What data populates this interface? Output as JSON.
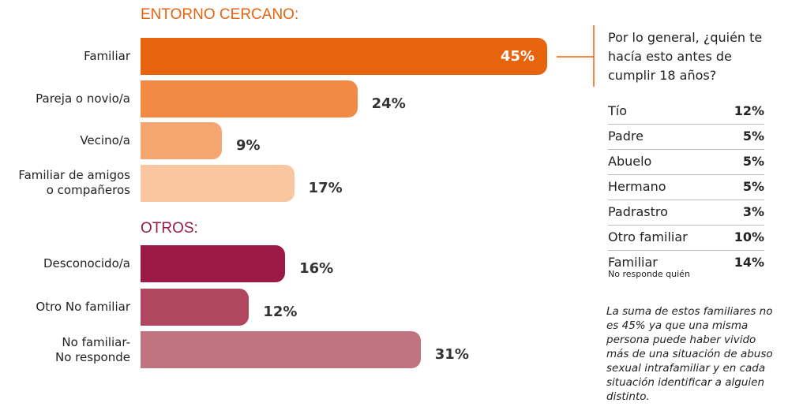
{
  "chart_data": {
    "type": "bar",
    "orientation": "horizontal",
    "groups": [
      {
        "title": "ENTORNO CERCANO:",
        "title_color": "#e8630e",
        "categories": [
          "Familiar",
          "Pareja o novio/a",
          "Vecino/a",
          "Familiar de amigos\no compañeros"
        ],
        "values": [
          45,
          24,
          9,
          17
        ],
        "value_labels": [
          "45%",
          "24%",
          "9%",
          "17%"
        ],
        "colors": [
          "#e8630e",
          "#f08a45",
          "#f5a670",
          "#f9c6a0"
        ]
      },
      {
        "title": "OTROS:",
        "title_color": "#9b1a45",
        "categories": [
          "Desconocido/a",
          "Otro No familiar",
          "No familiar-\nNo responde"
        ],
        "values": [
          16,
          12,
          31
        ],
        "value_labels": [
          "16%",
          "12%",
          "31%"
        ],
        "colors": [
          "#9b1a45",
          "#b0475f",
          "#c07480"
        ]
      }
    ]
  },
  "side_table": {
    "question": "Por lo general, ¿quién te hacía esto antes de cumplir 18 años?",
    "rows": [
      {
        "label": "Tío",
        "value": "12%"
      },
      {
        "label": "Padre",
        "value": "5%"
      },
      {
        "label": "Abuelo",
        "value": "5%"
      },
      {
        "label": "Hermano",
        "value": "5%"
      },
      {
        "label": "Padrastro",
        "value": "3%"
      },
      {
        "label": "Otro familiar",
        "value": "10%"
      },
      {
        "label": "Familiar",
        "sublabel": "No responde quién",
        "value": "14%"
      }
    ],
    "note": "La suma de estos familiares no es 45% ya que una misma persona puede haber vivido más de una situación de abuso sexual intrafamiliar y en cada situación identificar a alguien distinto."
  }
}
